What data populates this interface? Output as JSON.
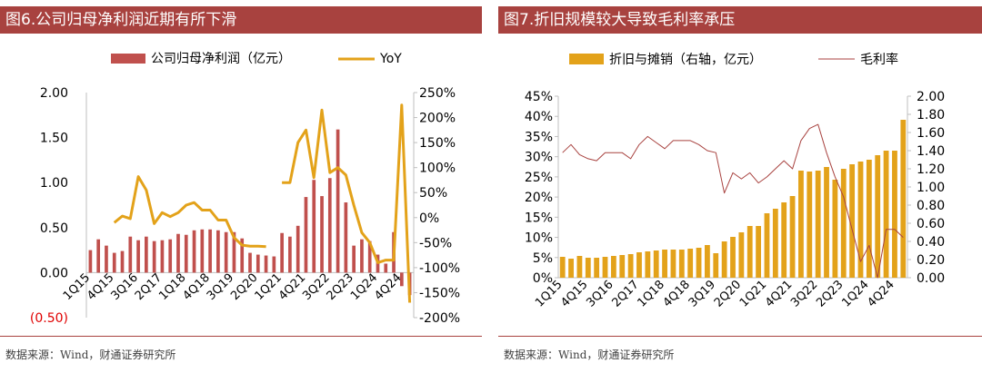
{
  "source_text": "数据来源：Wind，财通证券研究所",
  "chart_data": [
    {
      "id": "fig6",
      "type": "bar",
      "title": "图6.公司归母净利润近期有所下滑",
      "categories": [
        "1Q15",
        "2Q15",
        "3Q15",
        "4Q15",
        "1Q16",
        "2Q16",
        "3Q16",
        "4Q16",
        "1Q17",
        "2Q17",
        "3Q17",
        "4Q17",
        "1Q18",
        "2Q18",
        "3Q18",
        "4Q18",
        "1Q19",
        "2Q19",
        "3Q19",
        "4Q19",
        "1Q20",
        "2Q20",
        "3Q20",
        "4Q20",
        "1Q21",
        "2Q21",
        "3Q21",
        "4Q21",
        "1Q22",
        "2Q22",
        "3Q22",
        "4Q22",
        "1Q23",
        "2Q23",
        "3Q23",
        "4Q23",
        "1Q24",
        "2Q24",
        "3Q24",
        "4Q24",
        "1Q25"
      ],
      "x_tick_labels": [
        "1Q15",
        "4Q15",
        "3Q16",
        "2Q17",
        "1Q18",
        "4Q18",
        "3Q19",
        "2Q20",
        "1Q21",
        "4Q21",
        "3Q22",
        "2Q23",
        "1Q24",
        "4Q24"
      ],
      "series": [
        {
          "name": "公司归母净利润（亿元）",
          "kind": "bar",
          "axis": "left",
          "color": "#c0504d",
          "values": [
            0.25,
            0.37,
            0.3,
            0.22,
            0.24,
            0.4,
            0.36,
            0.4,
            0.35,
            0.36,
            0.37,
            0.43,
            0.42,
            0.47,
            0.48,
            0.48,
            0.47,
            0.45,
            0.45,
            0.38,
            0.22,
            0.2,
            0.19,
            0.18,
            0.44,
            0.4,
            0.52,
            0.84,
            1.03,
            0.85,
            1.05,
            1.59,
            0.78,
            0.3,
            0.37,
            0.35,
            0.2,
            0.1,
            0.45,
            -0.15,
            -0.25
          ]
        },
        {
          "name": "YoY",
          "kind": "line",
          "axis": "right",
          "color": "#e3a21a",
          "values": [
            null,
            null,
            null,
            -10,
            3,
            -2,
            82,
            55,
            -12,
            10,
            2,
            10,
            25,
            30,
            15,
            15,
            -5,
            -5,
            -40,
            -55,
            -57,
            -57,
            -58,
            null,
            70,
            70,
            150,
            175,
            80,
            215,
            90,
            100,
            85,
            25,
            -30,
            -50,
            -90,
            -85,
            -85,
            225,
            -170
          ]
        }
      ],
      "y_left": {
        "ticks": [
          "2.00",
          "1.50",
          "1.00",
          "0.50",
          "0.00",
          "(0.50)"
        ],
        "values": [
          2,
          1.5,
          1,
          0.5,
          0,
          -0.5
        ],
        "range": [
          -0.5,
          2.0
        ]
      },
      "y_right": {
        "ticks": [
          "250%",
          "200%",
          "150%",
          "100%",
          "50%",
          "0%",
          "-50%",
          "-100%",
          "-150%",
          "-200%"
        ],
        "values": [
          250,
          200,
          150,
          100,
          50,
          0,
          -50,
          -100,
          -150,
          -200
        ],
        "range": [
          -200,
          250
        ]
      }
    },
    {
      "id": "fig7",
      "type": "bar",
      "title": "图7.折旧规模较大导致毛利率承压",
      "categories": [
        "1Q15",
        "2Q15",
        "3Q15",
        "4Q15",
        "1Q16",
        "2Q16",
        "3Q16",
        "4Q16",
        "1Q17",
        "2Q17",
        "3Q17",
        "4Q17",
        "1Q18",
        "2Q18",
        "3Q18",
        "4Q18",
        "1Q19",
        "2Q19",
        "3Q19",
        "4Q19",
        "1Q20",
        "2Q20",
        "3Q20",
        "4Q20",
        "1Q21",
        "2Q21",
        "3Q21",
        "4Q21",
        "1Q22",
        "2Q22",
        "3Q22",
        "4Q22",
        "1Q23",
        "2Q23",
        "3Q23",
        "4Q23",
        "1Q24",
        "2Q24",
        "3Q24",
        "4Q24",
        "1Q25"
      ],
      "x_tick_labels": [
        "1Q15",
        "4Q15",
        "3Q16",
        "2Q17",
        "1Q18",
        "4Q18",
        "3Q19",
        "2Q20",
        "1Q21",
        "4Q21",
        "3Q22",
        "2Q23",
        "1Q24",
        "4Q24"
      ],
      "series": [
        {
          "name": "折旧与摊销（右轴，亿元）",
          "kind": "bar",
          "axis": "right",
          "color": "#e3a21a",
          "values": [
            0.23,
            0.21,
            0.24,
            0.22,
            0.22,
            0.23,
            0.24,
            0.25,
            0.26,
            0.28,
            0.29,
            0.3,
            0.31,
            0.31,
            0.31,
            0.32,
            0.33,
            0.36,
            0.27,
            0.4,
            0.45,
            0.5,
            0.57,
            0.57,
            0.71,
            0.76,
            0.83,
            0.9,
            1.18,
            1.17,
            1.18,
            1.22,
            1.08,
            1.2,
            1.25,
            1.28,
            1.3,
            1.35,
            1.4,
            1.4,
            1.74
          ]
        },
        {
          "name": "毛利率",
          "kind": "line",
          "axis": "left",
          "color": "#a8423f",
          "values": [
            31,
            33,
            30.5,
            29.5,
            29,
            31,
            31,
            31,
            29.5,
            33,
            35,
            33.5,
            32,
            34,
            34,
            34,
            33,
            31.5,
            31,
            21,
            26,
            24.5,
            26,
            23.5,
            25,
            27,
            29,
            27,
            34,
            37,
            38,
            31,
            25,
            20,
            12,
            4,
            8,
            0,
            12,
            12,
            10
          ]
        }
      ],
      "y_left": {
        "ticks": [
          "45%",
          "40%",
          "35%",
          "30%",
          "25%",
          "20%",
          "15%",
          "10%",
          "5%",
          "0%"
        ],
        "values": [
          45,
          40,
          35,
          30,
          25,
          20,
          15,
          10,
          5,
          0
        ],
        "range": [
          0,
          45
        ]
      },
      "y_right": {
        "ticks": [
          "2.00",
          "1.80",
          "1.60",
          "1.40",
          "1.20",
          "1.00",
          "0.80",
          "0.60",
          "0.40",
          "0.20",
          "0.00"
        ],
        "values": [
          2,
          1.8,
          1.6,
          1.4,
          1.2,
          1,
          0.8,
          0.6,
          0.4,
          0.2,
          0
        ],
        "range": [
          0,
          2.0
        ]
      }
    }
  ]
}
